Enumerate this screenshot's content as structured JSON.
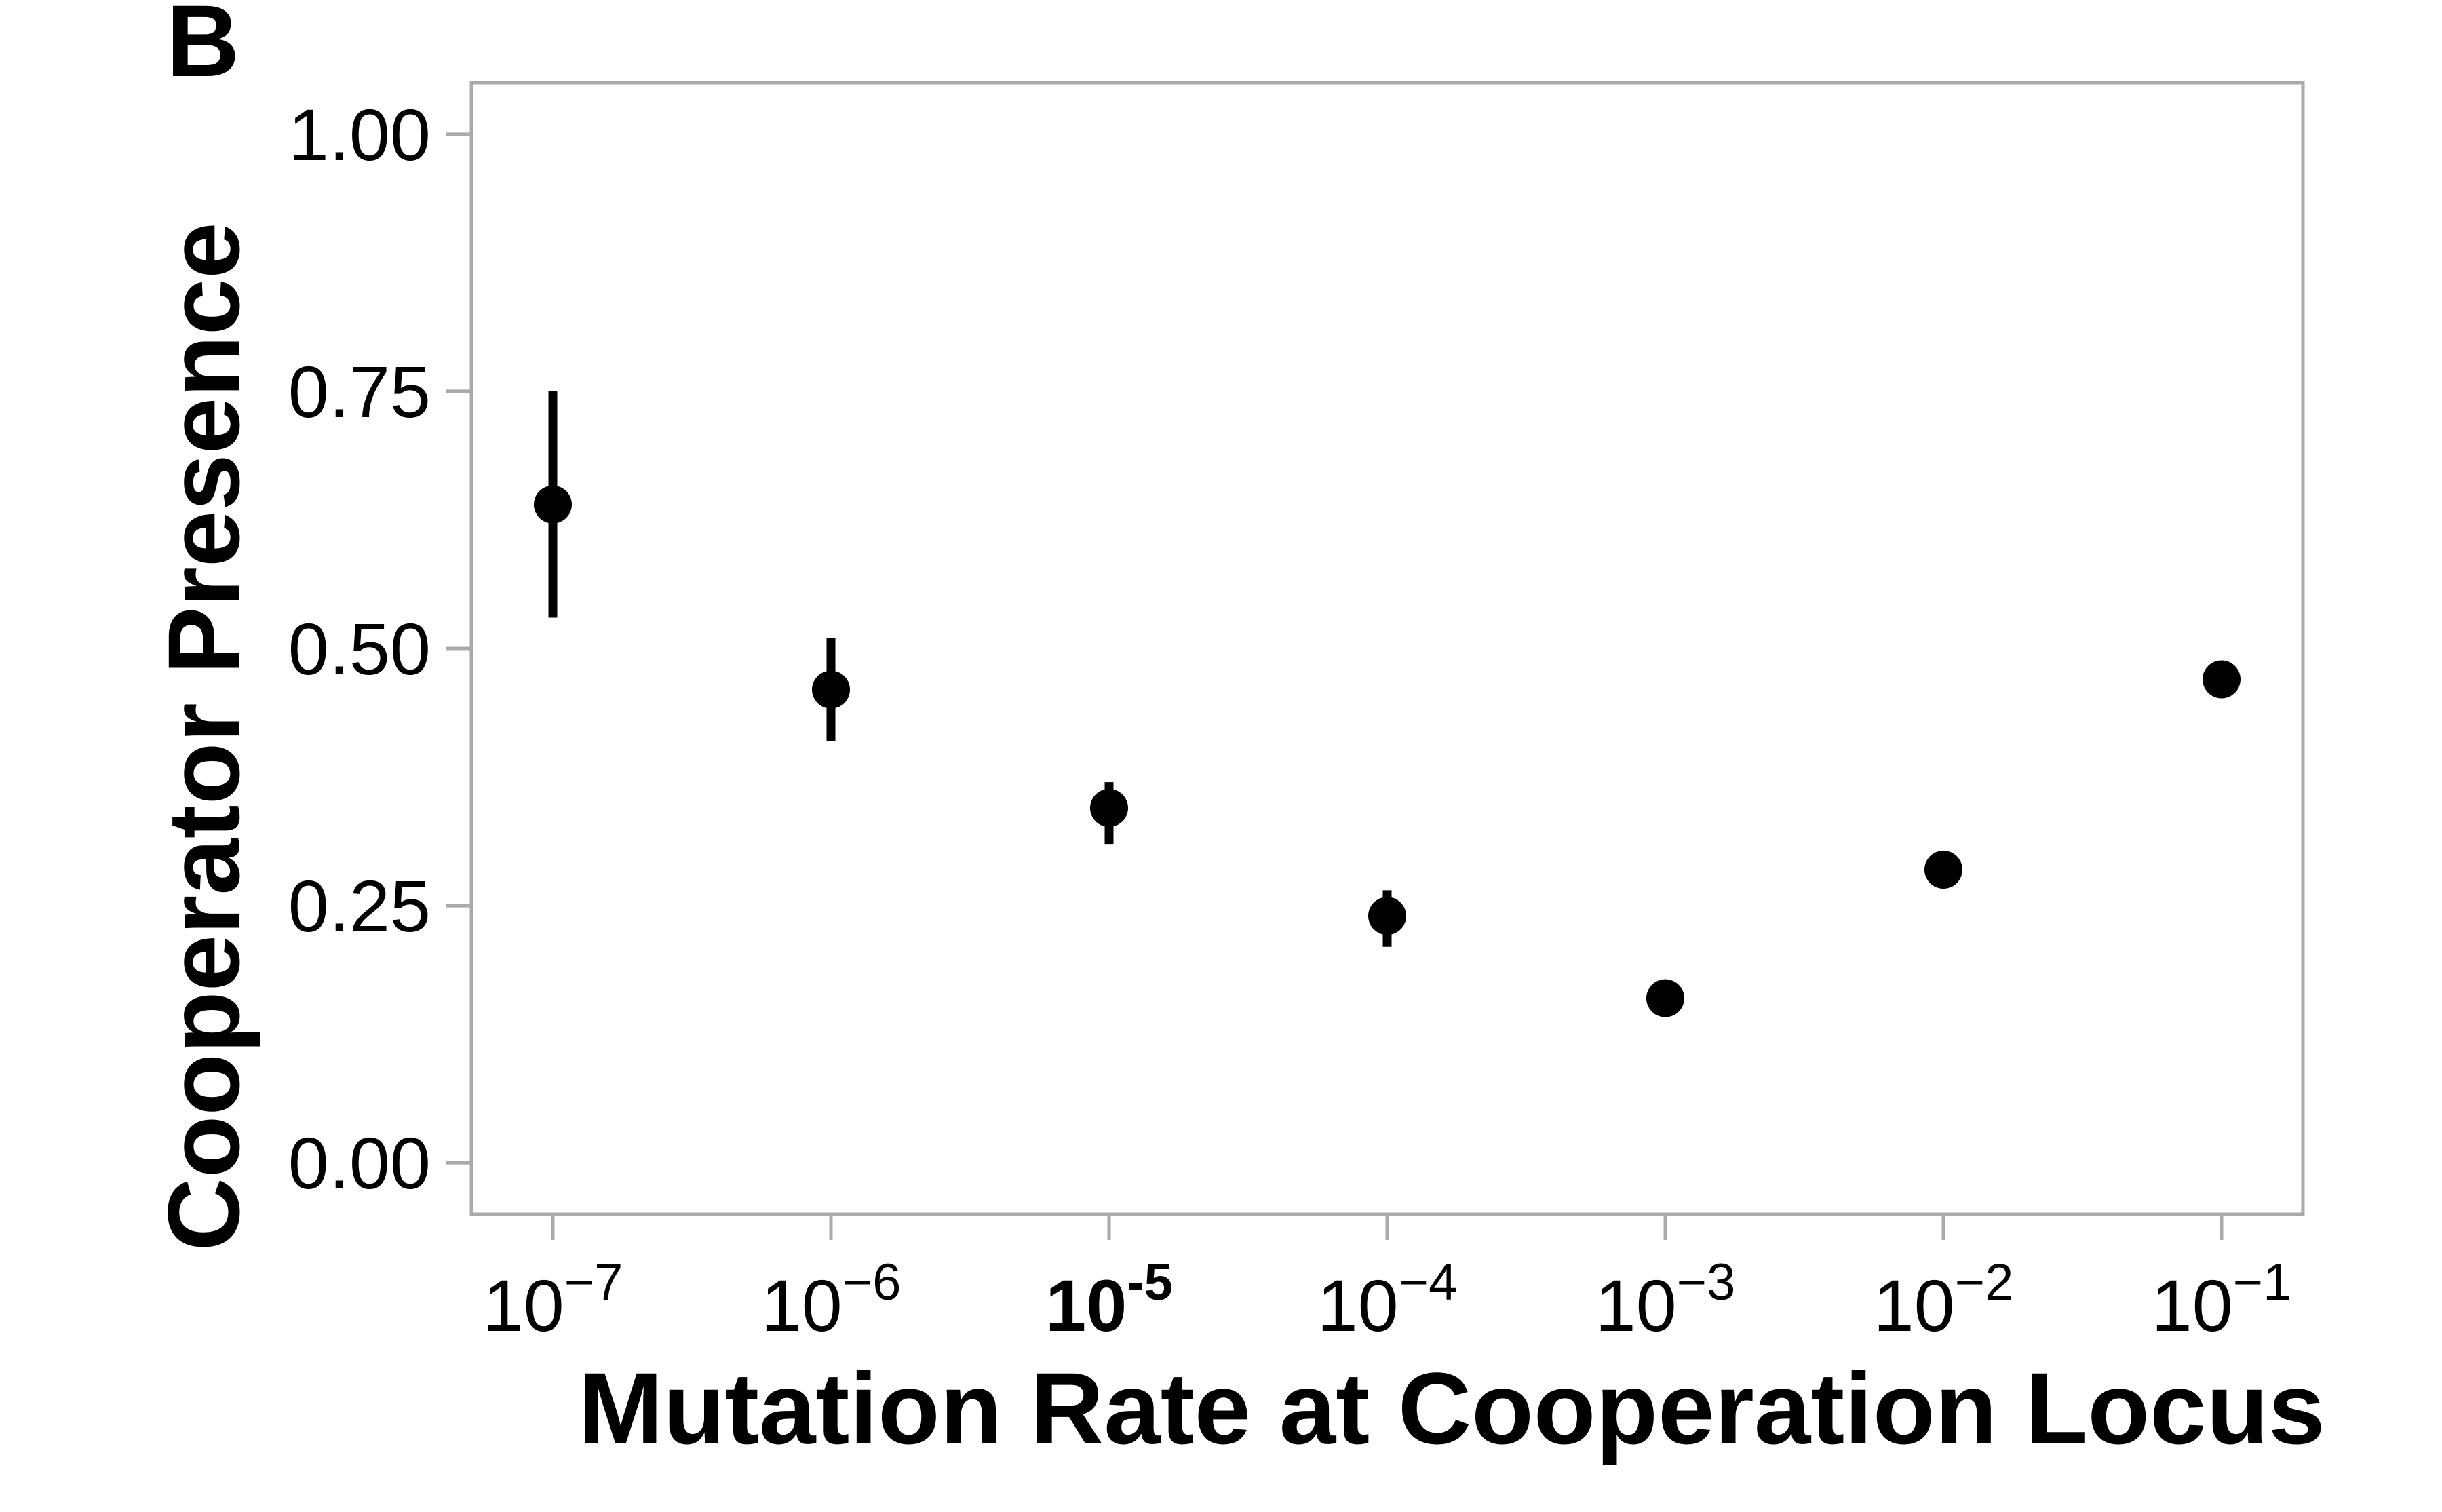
{
  "panel_label": "B",
  "chart_data": {
    "type": "scatter",
    "xlabel": "Mutation Rate at Cooperation Locus",
    "ylabel": "Cooperator Presence",
    "x_scale": "log10",
    "xlim": [
      1e-07,
      0.1
    ],
    "ylim": [
      -0.05,
      1.05
    ],
    "x_ticks": [
      {
        "value": 1e-07,
        "base": "10",
        "exp": "−7",
        "bold": false
      },
      {
        "value": 1e-06,
        "base": "10",
        "exp": "−6",
        "bold": false
      },
      {
        "value": 1e-05,
        "base": "10",
        "exp": "-5",
        "bold": true
      },
      {
        "value": 0.0001,
        "base": "10",
        "exp": "−4",
        "bold": false
      },
      {
        "value": 0.001,
        "base": "10",
        "exp": "−3",
        "bold": false
      },
      {
        "value": 0.01,
        "base": "10",
        "exp": "−2",
        "bold": false
      },
      {
        "value": 0.1,
        "base": "10",
        "exp": "−1",
        "bold": false
      }
    ],
    "y_ticks": [
      {
        "value": 0.0,
        "label": "0.00"
      },
      {
        "value": 0.25,
        "label": "0.25"
      },
      {
        "value": 0.5,
        "label": "0.50"
      },
      {
        "value": 0.75,
        "label": "0.75"
      },
      {
        "value": 1.0,
        "label": "1.00"
      }
    ],
    "grid": false,
    "points": [
      {
        "x": 1e-07,
        "y": 0.64,
        "err_low": 0.53,
        "err_high": 0.75
      },
      {
        "x": 1e-06,
        "y": 0.46,
        "err_low": 0.41,
        "err_high": 0.51
      },
      {
        "x": 1e-05,
        "y": 0.345,
        "err_low": 0.31,
        "err_high": 0.37
      },
      {
        "x": 0.0001,
        "y": 0.24,
        "err_low": 0.21,
        "err_high": 0.265
      },
      {
        "x": 0.001,
        "y": 0.16,
        "err_low": 0.155,
        "err_high": 0.165
      },
      {
        "x": 0.01,
        "y": 0.285,
        "err_low": 0.28,
        "err_high": 0.29
      },
      {
        "x": 0.1,
        "y": 0.47,
        "err_low": 0.465,
        "err_high": 0.475
      }
    ],
    "colors": {
      "marker": "#000000",
      "frame": "#aaaaaa"
    }
  }
}
